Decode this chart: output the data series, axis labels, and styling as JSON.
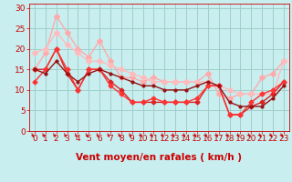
{
  "xlabel": "Vent moyen/en rafales ( km/h )",
  "xlim": [
    -0.5,
    23.5
  ],
  "ylim": [
    0,
    31
  ],
  "yticks": [
    0,
    5,
    10,
    15,
    20,
    25,
    30
  ],
  "xticks": [
    0,
    1,
    2,
    3,
    4,
    5,
    6,
    7,
    8,
    9,
    10,
    11,
    12,
    13,
    14,
    15,
    16,
    17,
    18,
    19,
    20,
    21,
    22,
    23
  ],
  "bg_color": "#c8eef0",
  "grid_color": "#a0cfc8",
  "lines": [
    {
      "x": [
        0,
        1,
        2,
        3,
        4,
        5,
        6,
        7,
        8,
        9,
        10,
        11,
        12,
        13,
        14,
        15,
        16,
        17,
        18,
        19,
        20,
        21,
        22,
        23
      ],
      "y": [
        15,
        19,
        28,
        24,
        20,
        18,
        22,
        17,
        13,
        13,
        12,
        13,
        12,
        12,
        12,
        12,
        14,
        9,
        8,
        9,
        9,
        13,
        14,
        17
      ],
      "color": "#ffaaaa",
      "lw": 1.0,
      "ms": 3.0
    },
    {
      "x": [
        0,
        1,
        2,
        3,
        4,
        5,
        6,
        7,
        8,
        9,
        10,
        11,
        12,
        13,
        14,
        15,
        16,
        17,
        18,
        19,
        20,
        21,
        22,
        23
      ],
      "y": [
        19,
        20,
        24,
        21,
        19,
        17,
        17,
        16,
        15,
        14,
        13,
        12,
        12,
        12,
        12,
        12,
        12,
        11,
        10,
        9,
        9,
        9,
        9,
        17
      ],
      "color": "#ffbbbb",
      "lw": 1.0,
      "ms": 3.0
    },
    {
      "x": [
        0,
        1,
        2,
        3,
        4,
        5,
        6,
        7,
        8,
        9,
        10,
        11,
        12,
        13,
        14,
        15,
        16,
        17,
        18,
        19,
        20,
        21,
        22,
        23
      ],
      "y": [
        15,
        15,
        20,
        14,
        10,
        15,
        15,
        12,
        10,
        7,
        7,
        7,
        7,
        7,
        7,
        7,
        11,
        11,
        4,
        4,
        6,
        7,
        9,
        12
      ],
      "color": "#dd2222",
      "lw": 1.0,
      "ms": 2.5
    },
    {
      "x": [
        0,
        1,
        2,
        3,
        4,
        5,
        6,
        7,
        8,
        9,
        10,
        11,
        12,
        13,
        14,
        15,
        16,
        17,
        18,
        19,
        20,
        21,
        22,
        23
      ],
      "y": [
        12,
        15,
        20,
        15,
        10,
        15,
        15,
        11,
        9,
        7,
        7,
        8,
        7,
        7,
        7,
        8,
        11,
        11,
        4,
        4,
        7,
        9,
        10,
        12
      ],
      "color": "#ff3333",
      "lw": 1.0,
      "ms": 2.5
    },
    {
      "x": [
        0,
        1,
        2,
        3,
        4,
        5,
        6,
        7,
        8,
        9,
        10,
        11,
        12,
        13,
        14,
        15,
        16,
        17,
        18,
        19,
        20,
        21,
        22,
        23
      ],
      "y": [
        15,
        14,
        17,
        14,
        12,
        14,
        15,
        14,
        13,
        12,
        11,
        11,
        10,
        10,
        10,
        11,
        12,
        11,
        7,
        6,
        6,
        6,
        8,
        11
      ],
      "color": "#991111",
      "lw": 1.0,
      "ms": 2.0
    }
  ],
  "arrow_color": "#cc0000",
  "xlabel_color": "#cc0000",
  "xlabel_fontsize": 7.5,
  "tick_fontsize": 6.5
}
